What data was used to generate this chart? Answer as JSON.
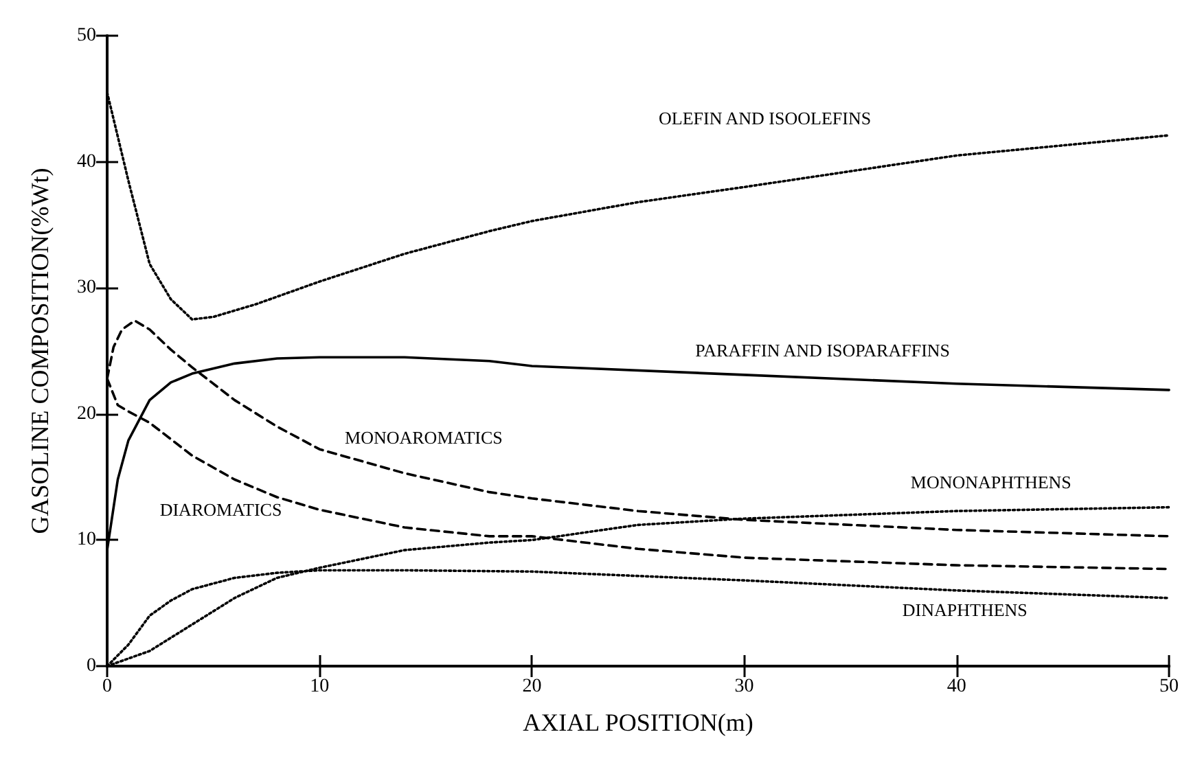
{
  "chart_data": {
    "type": "line",
    "xlabel": "AXIAL POSITION(m)",
    "ylabel": "GASOLINE COMPOSITION(%Wt)",
    "xlim": [
      0,
      50
    ],
    "ylim": [
      0,
      50
    ],
    "xticks": [
      0,
      10,
      20,
      30,
      40,
      50
    ],
    "yticks": [
      0,
      10,
      20,
      30,
      40,
      50
    ],
    "grid": false,
    "marker": "none",
    "series": [
      {
        "name": "OLEFIN AND ISOOLEFINS",
        "color": "#000000",
        "line_style": "dotted",
        "x": [
          0,
          1,
          2,
          3,
          4,
          5,
          7,
          10,
          14,
          18,
          20,
          25,
          30,
          40,
          50
        ],
        "values": [
          45.5,
          38.5,
          31.9,
          29.1,
          27.5,
          27.7,
          28.7,
          30.5,
          32.7,
          34.5,
          35.3,
          36.8,
          38,
          40.5,
          42.1
        ]
      },
      {
        "name": "PARAFFIN AND ISOPARAFFINS",
        "color": "#000000",
        "line_style": "solid",
        "x": [
          0,
          0.5,
          1,
          2,
          3,
          4,
          6,
          8,
          10,
          14,
          18,
          20,
          30,
          40,
          50
        ],
        "values": [
          9.2,
          14.8,
          17.9,
          21.1,
          22.5,
          23.2,
          24,
          24.4,
          24.5,
          24.5,
          24.2,
          23.8,
          23.1,
          22.4,
          21.9
        ]
      },
      {
        "name": "MONOAROMATICS",
        "color": "#000000",
        "line_style": "dashed",
        "x": [
          0,
          0.3,
          0.7,
          1.3,
          2,
          3,
          4,
          6,
          8,
          10,
          14,
          18,
          20,
          25,
          30,
          40,
          50
        ],
        "values": [
          22.8,
          25.3,
          26.7,
          27.4,
          26.7,
          25.1,
          23.7,
          21.1,
          19,
          17.2,
          15.3,
          13.8,
          13.3,
          12.3,
          11.6,
          10.8,
          10.3
        ]
      },
      {
        "name": "DIAROMATICS",
        "color": "#000000",
        "line_style": "dashed",
        "x": [
          0,
          0.5,
          1,
          2,
          4,
          6,
          8,
          10,
          14,
          18,
          20,
          25,
          30,
          40,
          50
        ],
        "values": [
          22.8,
          20.7,
          20.2,
          19.3,
          16.7,
          14.8,
          13.4,
          12.4,
          11,
          10.3,
          10.3,
          9.3,
          8.6,
          8,
          7.7
        ]
      },
      {
        "name": "MONONAPHTHENS",
        "color": "#000000",
        "line_style": "dotted",
        "x": [
          0,
          2,
          4,
          6,
          8,
          10,
          12,
          14,
          18,
          20,
          25,
          30,
          40,
          50
        ],
        "values": [
          0,
          1.2,
          3.3,
          5.4,
          7,
          7.8,
          8.5,
          9.2,
          9.8,
          10,
          11.2,
          11.7,
          12.3,
          12.6
        ]
      },
      {
        "name": "DINAPHTHENS",
        "color": "#000000",
        "line_style": "dotted",
        "x": [
          0,
          1,
          2,
          3,
          4,
          6,
          8,
          10,
          14,
          20,
          30,
          40,
          50
        ],
        "values": [
          0,
          1.7,
          4,
          5.2,
          6.1,
          7,
          7.4,
          7.6,
          7.6,
          7.5,
          6.8,
          6,
          5.4
        ]
      }
    ]
  }
}
